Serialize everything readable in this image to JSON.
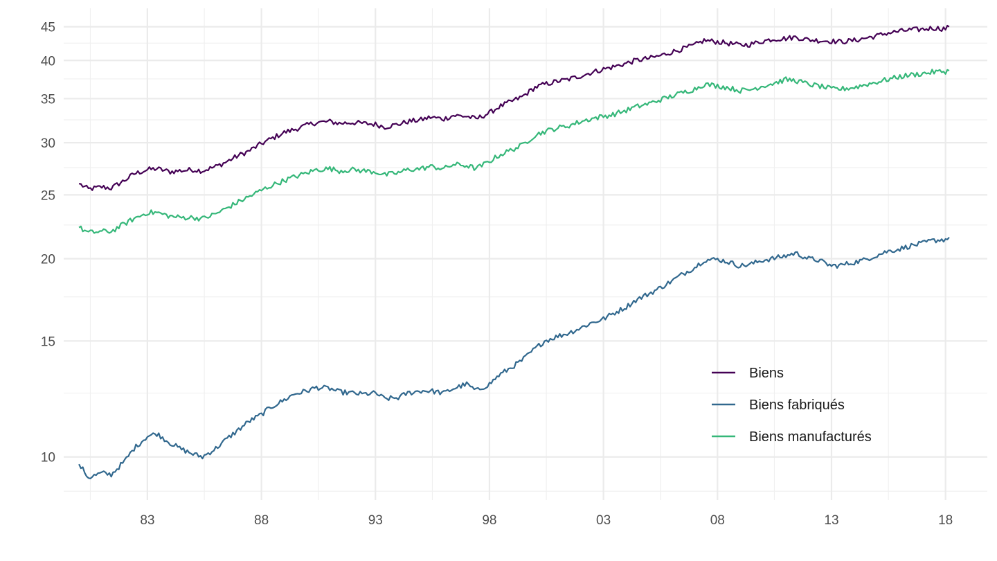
{
  "chart_data": {
    "type": "line",
    "title": "",
    "xlabel": "",
    "ylabel": "",
    "x_scale": "time",
    "y_scale": "log",
    "xlim": [
      "1979-05-01",
      "2019-11-01"
    ],
    "ylim": [
      8.6,
      48
    ],
    "x_ticks": [
      {
        "date": "1983-01-01",
        "label": "83"
      },
      {
        "date": "1988-01-01",
        "label": "88"
      },
      {
        "date": "1993-01-01",
        "label": "93"
      },
      {
        "date": "1998-01-01",
        "label": "98"
      },
      {
        "date": "2003-01-01",
        "label": "03"
      },
      {
        "date": "2008-01-01",
        "label": "08"
      },
      {
        "date": "2013-01-01",
        "label": "13"
      },
      {
        "date": "2018-01-01",
        "label": "18"
      }
    ],
    "x_minor_ticks": [
      "1980-07-01",
      "1985-07-01",
      "1990-07-01",
      "1995-07-01",
      "2000-07-01",
      "2005-07-01",
      "2010-07-01",
      "2015-07-01"
    ],
    "y_ticks": [
      10,
      15,
      20,
      25,
      30,
      35,
      40,
      45
    ],
    "y_minor_ticks": [
      8.87,
      12.5,
      17.5,
      22.5,
      27.5,
      32.5,
      37.5,
      42.5
    ],
    "grid": true,
    "legend_position": "bottom-right",
    "series": [
      {
        "name": "Biens",
        "color": "#440154",
        "points": [
          [
            "1980-01-01",
            26.0
          ],
          [
            "1980-06-01",
            25.5
          ],
          [
            "1981-01-01",
            25.7
          ],
          [
            "1981-06-01",
            25.6
          ],
          [
            "1982-01-01",
            26.3
          ],
          [
            "1982-06-01",
            26.9
          ],
          [
            "1983-01-01",
            27.3
          ],
          [
            "1983-06-01",
            27.4
          ],
          [
            "1984-01-01",
            27.1
          ],
          [
            "1984-06-01",
            27.2
          ],
          [
            "1985-01-01",
            27.3
          ],
          [
            "1985-06-01",
            27.2
          ],
          [
            "1986-01-01",
            27.6
          ],
          [
            "1986-06-01",
            28.0
          ],
          [
            "1987-01-01",
            28.7
          ],
          [
            "1987-06-01",
            29.1
          ],
          [
            "1988-01-01",
            29.9
          ],
          [
            "1988-06-01",
            30.4
          ],
          [
            "1989-01-01",
            31.1
          ],
          [
            "1989-06-01",
            31.4
          ],
          [
            "1990-01-01",
            31.9
          ],
          [
            "1990-06-01",
            32.2
          ],
          [
            "1991-01-01",
            32.3
          ],
          [
            "1991-06-01",
            32.1
          ],
          [
            "1992-01-01",
            32.2
          ],
          [
            "1992-06-01",
            32.1
          ],
          [
            "1993-01-01",
            32.0
          ],
          [
            "1993-06-01",
            31.7
          ],
          [
            "1994-01-01",
            32.0
          ],
          [
            "1994-06-01",
            32.3
          ],
          [
            "1995-01-01",
            32.5
          ],
          [
            "1995-06-01",
            32.8
          ],
          [
            "1996-01-01",
            32.6
          ],
          [
            "1996-06-01",
            33.0
          ],
          [
            "1997-01-01",
            32.9
          ],
          [
            "1997-06-01",
            32.6
          ],
          [
            "1998-01-01",
            33.3
          ],
          [
            "1998-06-01",
            34.0
          ],
          [
            "1999-01-01",
            34.7
          ],
          [
            "1999-06-01",
            35.2
          ],
          [
            "2000-01-01",
            36.4
          ],
          [
            "2000-06-01",
            36.8
          ],
          [
            "2001-01-01",
            37.2
          ],
          [
            "2001-06-01",
            37.4
          ],
          [
            "2002-01-01",
            37.9
          ],
          [
            "2002-06-01",
            38.3
          ],
          [
            "2003-01-01",
            38.8
          ],
          [
            "2003-06-01",
            39.1
          ],
          [
            "2004-01-01",
            39.6
          ],
          [
            "2004-06-01",
            40.0
          ],
          [
            "2005-01-01",
            40.3
          ],
          [
            "2005-06-01",
            40.6
          ],
          [
            "2006-01-01",
            41.2
          ],
          [
            "2006-06-01",
            41.6
          ],
          [
            "2007-01-01",
            42.2
          ],
          [
            "2007-06-01",
            42.9
          ],
          [
            "2008-01-01",
            42.7
          ],
          [
            "2008-06-01",
            42.5
          ],
          [
            "2009-01-01",
            42.2
          ],
          [
            "2009-06-01",
            42.3
          ],
          [
            "2010-01-01",
            42.8
          ],
          [
            "2010-06-01",
            43.1
          ],
          [
            "2011-01-01",
            43.2
          ],
          [
            "2011-06-01",
            43.4
          ],
          [
            "2012-01-01",
            43.0
          ],
          [
            "2012-06-01",
            42.9
          ],
          [
            "2013-01-01",
            42.8
          ],
          [
            "2013-06-01",
            42.7
          ],
          [
            "2014-01-01",
            42.9
          ],
          [
            "2014-06-01",
            43.2
          ],
          [
            "2015-01-01",
            43.6
          ],
          [
            "2015-06-01",
            44.0
          ],
          [
            "2016-01-01",
            44.3
          ],
          [
            "2016-06-01",
            44.5
          ],
          [
            "2017-01-01",
            44.6
          ],
          [
            "2017-06-01",
            44.8
          ],
          [
            "2018-01-01",
            44.7
          ],
          [
            "2018-03-01",
            45.0
          ]
        ]
      },
      {
        "name": "Biens fabriqués",
        "color": "#31688e",
        "points": [
          [
            "1980-01-01",
            9.75
          ],
          [
            "1980-06-01",
            9.3
          ],
          [
            "1981-01-01",
            9.45
          ],
          [
            "1981-06-01",
            9.4
          ],
          [
            "1982-01-01",
            9.85
          ],
          [
            "1982-06-01",
            10.3
          ],
          [
            "1983-01-01",
            10.75
          ],
          [
            "1983-06-01",
            10.85
          ],
          [
            "1984-01-01",
            10.5
          ],
          [
            "1984-06-01",
            10.3
          ],
          [
            "1985-01-01",
            10.1
          ],
          [
            "1985-06-01",
            10.0
          ],
          [
            "1986-01-01",
            10.3
          ],
          [
            "1986-06-01",
            10.6
          ],
          [
            "1987-01-01",
            11.0
          ],
          [
            "1987-06-01",
            11.3
          ],
          [
            "1988-01-01",
            11.6
          ],
          [
            "1988-06-01",
            11.9
          ],
          [
            "1989-01-01",
            12.2
          ],
          [
            "1989-06-01",
            12.45
          ],
          [
            "1990-01-01",
            12.6
          ],
          [
            "1990-06-01",
            12.75
          ],
          [
            "1991-01-01",
            12.7
          ],
          [
            "1991-06-01",
            12.55
          ],
          [
            "1992-01-01",
            12.5
          ],
          [
            "1992-06-01",
            12.45
          ],
          [
            "1993-01-01",
            12.5
          ],
          [
            "1993-06-01",
            12.25
          ],
          [
            "1994-01-01",
            12.3
          ],
          [
            "1994-06-01",
            12.5
          ],
          [
            "1995-01-01",
            12.6
          ],
          [
            "1995-06-01",
            12.6
          ],
          [
            "1996-01-01",
            12.5
          ],
          [
            "1996-06-01",
            12.7
          ],
          [
            "1997-01-01",
            12.9
          ],
          [
            "1997-06-01",
            12.6
          ],
          [
            "1998-01-01",
            12.9
          ],
          [
            "1998-06-01",
            13.3
          ],
          [
            "1999-01-01",
            13.7
          ],
          [
            "1999-06-01",
            14.0
          ],
          [
            "2000-01-01",
            14.6
          ],
          [
            "2000-06-01",
            15.0
          ],
          [
            "2001-01-01",
            15.25
          ],
          [
            "2001-06-01",
            15.4
          ],
          [
            "2002-01-01",
            15.7
          ],
          [
            "2002-06-01",
            15.95
          ],
          [
            "2003-01-01",
            16.2
          ],
          [
            "2003-06-01",
            16.5
          ],
          [
            "2004-01-01",
            16.9
          ],
          [
            "2004-06-01",
            17.3
          ],
          [
            "2005-01-01",
            17.7
          ],
          [
            "2005-06-01",
            18.0
          ],
          [
            "2006-01-01",
            18.5
          ],
          [
            "2006-06-01",
            18.9
          ],
          [
            "2007-01-01",
            19.4
          ],
          [
            "2007-06-01",
            19.9
          ],
          [
            "2008-01-01",
            19.95
          ],
          [
            "2008-06-01",
            19.8
          ],
          [
            "2009-01-01",
            19.5
          ],
          [
            "2009-06-01",
            19.6
          ],
          [
            "2010-01-01",
            19.9
          ],
          [
            "2010-06-01",
            20.0
          ],
          [
            "2011-01-01",
            20.2
          ],
          [
            "2011-06-01",
            20.4
          ],
          [
            "2012-01-01",
            20.0
          ],
          [
            "2012-06-01",
            19.9
          ],
          [
            "2013-01-01",
            19.5
          ],
          [
            "2013-06-01",
            19.55
          ],
          [
            "2014-01-01",
            19.75
          ],
          [
            "2014-06-01",
            19.9
          ],
          [
            "2015-01-01",
            20.25
          ],
          [
            "2015-06-01",
            20.5
          ],
          [
            "2016-01-01",
            20.7
          ],
          [
            "2016-06-01",
            20.9
          ],
          [
            "2017-01-01",
            21.1
          ],
          [
            "2017-06-01",
            21.3
          ],
          [
            "2018-01-01",
            21.4
          ],
          [
            "2018-03-01",
            21.55
          ]
        ]
      },
      {
        "name": "Biens manufacturés",
        "color": "#35b779",
        "points": [
          [
            "1980-01-01",
            22.3
          ],
          [
            "1980-06-01",
            21.9
          ],
          [
            "1981-01-01",
            22.0
          ],
          [
            "1981-06-01",
            22.0
          ],
          [
            "1982-01-01",
            22.6
          ],
          [
            "1982-06-01",
            23.0
          ],
          [
            "1983-01-01",
            23.5
          ],
          [
            "1983-06-01",
            23.5
          ],
          [
            "1984-01-01",
            23.2
          ],
          [
            "1984-06-01",
            23.1
          ],
          [
            "1985-01-01",
            23.1
          ],
          [
            "1985-06-01",
            23.0
          ],
          [
            "1986-01-01",
            23.4
          ],
          [
            "1986-06-01",
            23.8
          ],
          [
            "1987-01-01",
            24.4
          ],
          [
            "1987-06-01",
            24.8
          ],
          [
            "1988-01-01",
            25.4
          ],
          [
            "1988-06-01",
            25.8
          ],
          [
            "1989-01-01",
            26.3
          ],
          [
            "1989-06-01",
            26.6
          ],
          [
            "1990-01-01",
            27.0
          ],
          [
            "1990-06-01",
            27.3
          ],
          [
            "1991-01-01",
            27.4
          ],
          [
            "1991-06-01",
            27.2
          ],
          [
            "1992-01-01",
            27.3
          ],
          [
            "1992-06-01",
            27.2
          ],
          [
            "1993-01-01",
            27.1
          ],
          [
            "1993-06-01",
            26.8
          ],
          [
            "1994-01-01",
            27.0
          ],
          [
            "1994-06-01",
            27.3
          ],
          [
            "1995-01-01",
            27.4
          ],
          [
            "1995-06-01",
            27.6
          ],
          [
            "1996-01-01",
            27.4
          ],
          [
            "1996-06-01",
            27.8
          ],
          [
            "1997-01-01",
            27.7
          ],
          [
            "1997-06-01",
            27.4
          ],
          [
            "1998-01-01",
            28.1
          ],
          [
            "1998-06-01",
            28.7
          ],
          [
            "1999-01-01",
            29.3
          ],
          [
            "1999-06-01",
            29.7
          ],
          [
            "2000-01-01",
            30.8
          ],
          [
            "2000-06-01",
            31.2
          ],
          [
            "2001-01-01",
            31.6
          ],
          [
            "2001-06-01",
            31.8
          ],
          [
            "2002-01-01",
            32.3
          ],
          [
            "2002-06-01",
            32.6
          ],
          [
            "2003-01-01",
            32.9
          ],
          [
            "2003-06-01",
            33.1
          ],
          [
            "2004-01-01",
            33.6
          ],
          [
            "2004-06-01",
            34.0
          ],
          [
            "2005-01-01",
            34.4
          ],
          [
            "2005-06-01",
            34.8
          ],
          [
            "2006-01-01",
            35.3
          ],
          [
            "2006-06-01",
            35.7
          ],
          [
            "2007-01-01",
            36.2
          ],
          [
            "2007-06-01",
            36.8
          ],
          [
            "2008-01-01",
            36.6
          ],
          [
            "2008-06-01",
            36.4
          ],
          [
            "2009-01-01",
            36.0
          ],
          [
            "2009-06-01",
            36.1
          ],
          [
            "2010-01-01",
            36.6
          ],
          [
            "2010-06-01",
            36.9
          ],
          [
            "2011-01-01",
            37.4
          ],
          [
            "2011-06-01",
            37.3
          ],
          [
            "2012-01-01",
            36.8
          ],
          [
            "2012-06-01",
            36.6
          ],
          [
            "2013-01-01",
            36.2
          ],
          [
            "2013-06-01",
            36.2
          ],
          [
            "2014-01-01",
            36.4
          ],
          [
            "2014-06-01",
            36.7
          ],
          [
            "2015-01-01",
            37.1
          ],
          [
            "2015-06-01",
            37.4
          ],
          [
            "2016-01-01",
            37.8
          ],
          [
            "2016-06-01",
            38.0
          ],
          [
            "2017-01-01",
            38.2
          ],
          [
            "2017-06-01",
            38.4
          ],
          [
            "2018-01-01",
            38.5
          ],
          [
            "2018-03-01",
            38.6
          ]
        ]
      }
    ]
  }
}
